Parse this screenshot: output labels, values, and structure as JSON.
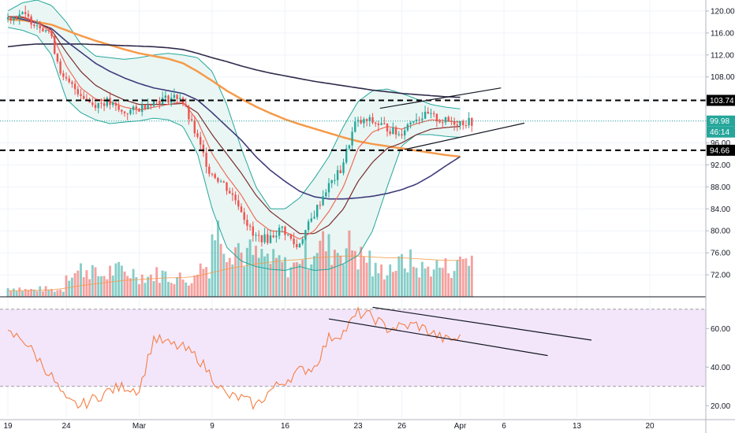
{
  "colors": {
    "background": "#ffffff",
    "grid": "#f0f3fa",
    "up": "#26a69a",
    "down": "#ef5350",
    "bb_band": "#26a69a",
    "bb_fill": "#e9f6f4",
    "ema_fast": "#ef6c5a",
    "ema_mid": "#7b2d2d",
    "ema_slow": "#3f3b7a",
    "ma_200": "#2e2a4a",
    "ma_orange": "#f59a4a",
    "rsi_line": "#f57f45",
    "rsi_fill": "#f3e6fb",
    "rsi_band": "#9e9e9e",
    "current_price": "#26a69a",
    "level_line": "#000000"
  },
  "chart_data": [
    {
      "type": "candlestick",
      "panel": "price",
      "ylim": [
        68,
        122
      ],
      "y_ticks": [
        "120.00",
        "116.00",
        "112.00",
        "108.00",
        "104.00",
        "100.00",
        "96.00",
        "92.00",
        "88.00",
        "84.00",
        "80.00",
        "76.00",
        "72.00"
      ],
      "x_ticks": [
        "19",
        "24",
        "Mar",
        "9",
        "16",
        "23",
        "26",
        "Apr",
        "6",
        "13",
        "20"
      ],
      "x_tick_index": [
        0,
        4,
        9,
        14,
        19,
        24,
        27,
        31,
        34,
        39,
        44
      ],
      "horizontal_levels": [
        103.74,
        94.66
      ],
      "level_labels": [
        "103.74",
        "94.66"
      ],
      "current_price": 99.98,
      "current_price_label": "99.98",
      "countdown_label": "46:14",
      "bars_per_day": 5,
      "daily_close": [
        118.5,
        119.5,
        118.0,
        116.5,
        107.5,
        105.5,
        103.0,
        103.5,
        101.5,
        102.0,
        103.5,
        104.0,
        104.5,
        98.0,
        91.0,
        88.5,
        85.0,
        79.0,
        78.5,
        80.5,
        77.0,
        82.0,
        87.5,
        91.0,
        99.5,
        100.0,
        99.0,
        97.5,
        100.5,
        101.0,
        100.0,
        99.8
      ],
      "ema_fast": [
        119,
        119,
        118,
        116,
        110,
        106,
        104,
        103.5,
        102.5,
        102,
        102.5,
        103,
        103.5,
        100,
        94,
        90,
        86.5,
        82,
        80,
        79.8,
        78.5,
        80,
        83.5,
        88,
        95,
        98,
        99,
        98.5,
        99.5,
        100.2,
        100,
        99.8
      ],
      "ema_mid": [
        119,
        118.8,
        118,
        116.5,
        112.5,
        109,
        106.5,
        105,
        103.8,
        103,
        103,
        103,
        103.2,
        101.5,
        97.5,
        94,
        90.5,
        86.5,
        83.5,
        81.5,
        79.5,
        79.5,
        81,
        84,
        89,
        92.5,
        95,
        96,
        97.5,
        98.5,
        98.8,
        99
      ],
      "ema_slow": [
        119,
        118.5,
        117.8,
        116.8,
        114.5,
        112.5,
        110.5,
        109,
        107.8,
        106.8,
        106,
        105.5,
        105,
        103.8,
        101.5,
        99,
        96.5,
        93.5,
        91,
        89,
        87.2,
        86.2,
        85.8,
        85.8,
        86,
        86.3,
        86.8,
        87.5,
        88.5,
        90,
        91.8,
        93.5
      ],
      "ma_200": [
        113.5,
        113.8,
        114,
        114,
        114,
        114,
        113.9,
        113.8,
        113.7,
        113.6,
        113.5,
        113.3,
        113,
        112.3,
        111.5,
        110.8,
        110,
        109.3,
        108.7,
        108.2,
        107.7,
        107.2,
        106.8,
        106.4,
        106,
        105.6,
        105.3,
        105,
        104.8,
        104.6,
        104.4,
        104.3
      ],
      "ma_orange": [
        118.5,
        118.3,
        118,
        117.5,
        116.5,
        115.5,
        114.6,
        113.8,
        113,
        112.3,
        111.8,
        111.3,
        110.5,
        109,
        107.3,
        105.5,
        104,
        102.6,
        101.4,
        100.3,
        99.4,
        98.6,
        97.8,
        97,
        96.3,
        95.8,
        95.4,
        95,
        94.6,
        94.2,
        93.8,
        93.5
      ],
      "bb_upper": [
        120,
        121.5,
        122,
        121,
        118,
        114,
        111.8,
        111.5,
        111.2,
        111.5,
        112,
        112.3,
        112,
        111.5,
        109,
        103,
        95,
        88,
        84,
        84,
        86,
        89.5,
        93.5,
        99,
        103.5,
        105.5,
        105.8,
        105,
        104,
        103,
        102.5,
        102.2
      ],
      "bb_lower": [
        117,
        116.5,
        115.5,
        112,
        104,
        101.5,
        100.2,
        99.5,
        99.8,
        100,
        100.5,
        100.2,
        99,
        94,
        84,
        77,
        74.5,
        73.5,
        73,
        72.8,
        73.5,
        72.8,
        73,
        74,
        75.5,
        80,
        88,
        95.5,
        97.5,
        97.5,
        97.2,
        97
      ],
      "volume_daily": [
        1.0,
        0.8,
        0.9,
        0.8,
        2.8,
        3.2,
        2.5,
        3.0,
        2.8,
        2.4,
        2.6,
        2.2,
        2.0,
        3.5,
        7.5,
        6.0,
        5.0,
        4.5,
        4.0,
        3.5,
        5.0,
        6.0,
        5.5,
        5.8,
        4.5,
        3.0,
        3.5,
        4.0,
        3.2,
        3.5,
        3.4,
        4.5
      ],
      "volume_ma": [
        0.7,
        0.7,
        0.75,
        0.8,
        1.0,
        1.3,
        1.5,
        1.7,
        1.9,
        2.0,
        2.1,
        2.2,
        2.2,
        2.4,
        2.8,
        3.2,
        3.5,
        3.8,
        4.0,
        4.2,
        4.3,
        4.5,
        4.6,
        4.7,
        4.7,
        4.6,
        4.5,
        4.5,
        4.4,
        4.3,
        4.2,
        4.2
      ]
    },
    {
      "type": "line",
      "panel": "rsi",
      "ylim": [
        14,
        74
      ],
      "y_ticks": [
        "60.00",
        "40.00",
        "20.00"
      ],
      "bands": [
        30,
        70
      ],
      "rsi": [
        57,
        55,
        45,
        35,
        22,
        20,
        24,
        28,
        30,
        28,
        55,
        52,
        50,
        45,
        35,
        25,
        24,
        20,
        28,
        33,
        38,
        40,
        55,
        58,
        68,
        66,
        60,
        61,
        62,
        58,
        54,
        55
      ]
    }
  ]
}
